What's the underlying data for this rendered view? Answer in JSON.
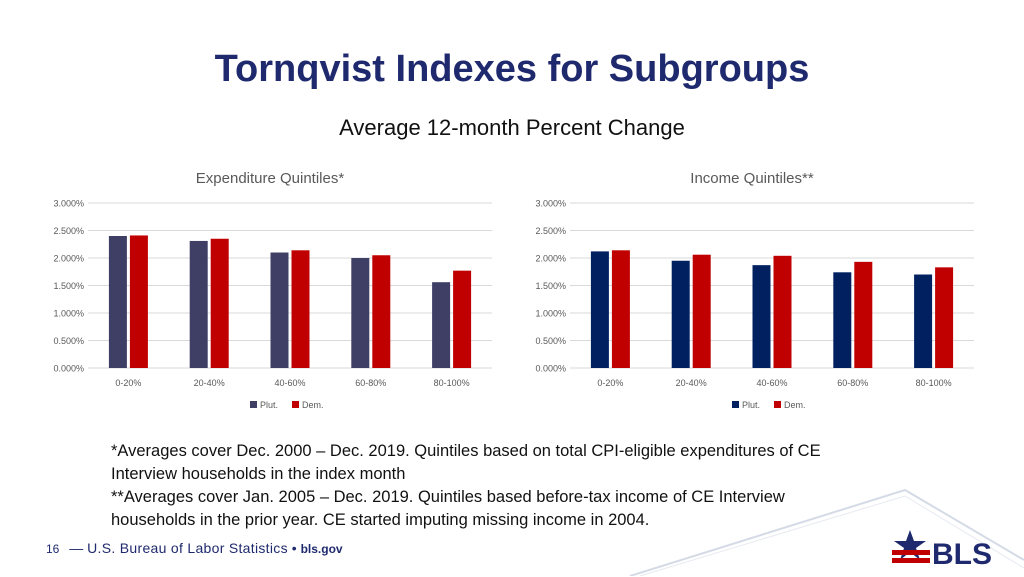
{
  "title": "Tornqvist Indexes for Subgroups",
  "subtitle": "Average 12-month Percent Change",
  "chart_data": [
    {
      "type": "bar",
      "title": "Expenditure Quintiles*",
      "categories": [
        "0-20%",
        "20-40%",
        "40-60%",
        "60-80%",
        "80-100%"
      ],
      "series": [
        {
          "name": "Plut.",
          "color": "#3f3f66",
          "values": [
            2.4,
            2.31,
            2.1,
            2.0,
            1.56
          ]
        },
        {
          "name": "Dem.",
          "color": "#c00000",
          "values": [
            2.41,
            2.35,
            2.14,
            2.05,
            1.77
          ]
        }
      ],
      "ylim": [
        0,
        3
      ],
      "yticks": [
        "0.000%",
        "0.500%",
        "1.000%",
        "1.500%",
        "2.000%",
        "2.500%",
        "3.000%"
      ],
      "grid": true,
      "legend": "bottom"
    },
    {
      "type": "bar",
      "title": "Income Quintiles**",
      "categories": [
        "0-20%",
        "20-40%",
        "40-60%",
        "60-80%",
        "80-100%"
      ],
      "series": [
        {
          "name": "Plut.",
          "color": "#002060",
          "values": [
            2.12,
            1.95,
            1.87,
            1.74,
            1.7
          ]
        },
        {
          "name": "Dem.",
          "color": "#c00000",
          "values": [
            2.14,
            2.06,
            2.04,
            1.93,
            1.83
          ]
        }
      ],
      "ylim": [
        0,
        3
      ],
      "yticks": [
        "0.000%",
        "0.500%",
        "1.000%",
        "1.500%",
        "2.000%",
        "2.500%",
        "3.000%"
      ],
      "grid": true,
      "legend": "bottom"
    }
  ],
  "notes": {
    "line1": "*Averages cover Dec. 2000 – Dec. 2019. Quintiles based on total CPI-eligible expenditures of CE Interview households in the index month",
    "line2": "**Averages cover Jan. 2005 – Dec. 2019. Quintiles based before-tax income of CE Interview households in the prior year. CE started imputing missing income in 2004."
  },
  "footer": {
    "page_number": "16",
    "dash": "—",
    "agency": "U.S. Bureau of Labor Statistics",
    "separator": "•",
    "website": "bls.gov"
  },
  "logo_text": "BLS"
}
